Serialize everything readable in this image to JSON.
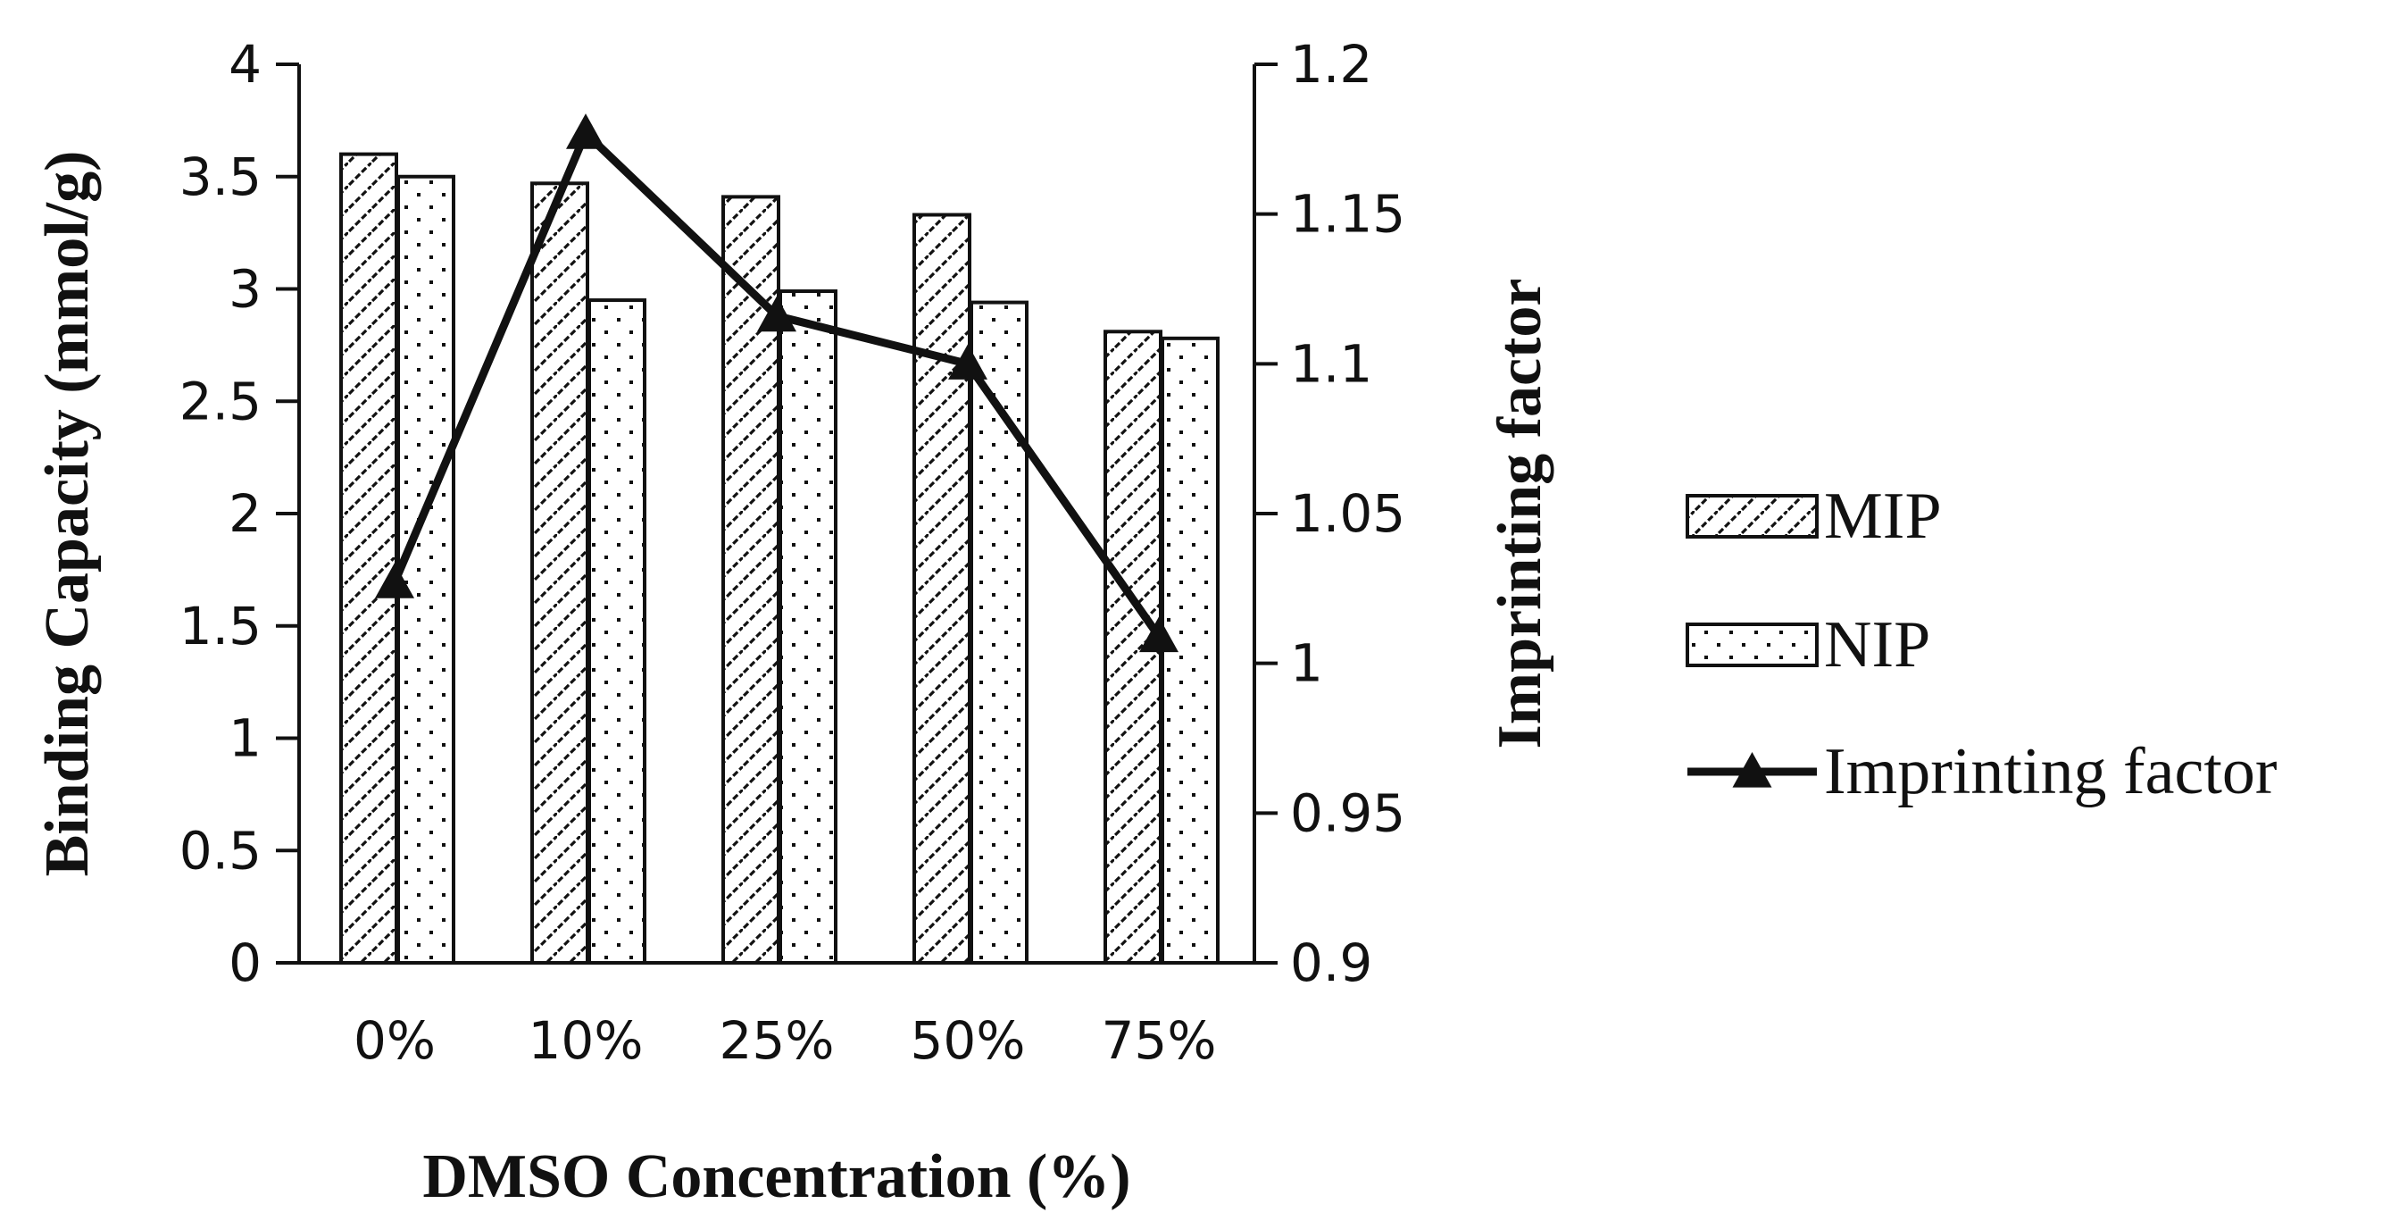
{
  "chart_data": {
    "type": "bar",
    "categories": [
      "0%",
      "10%",
      "25%",
      "50%",
      "75%"
    ],
    "xlabel": "DMSO Concentration (%)",
    "ylabel": "Binding Capacity (mmol/g)",
    "y2label": "Imprinting factor",
    "ylim": [
      0,
      4
    ],
    "yticks": [
      "0",
      "0.5",
      "1",
      "1.5",
      "2",
      "2.5",
      "3",
      "3.5",
      "4"
    ],
    "y2lim": [
      0.9,
      1.2
    ],
    "y2ticks": [
      "0.9",
      "0.95",
      "1",
      "1.05",
      "1.1",
      "1.15",
      "1.2"
    ],
    "grid": false,
    "legend_position": "right",
    "series": [
      {
        "name": "MIP",
        "kind": "bar",
        "pattern": "diagonal-hatch",
        "values": [
          3.6,
          3.47,
          3.41,
          3.33,
          2.81
        ]
      },
      {
        "name": "NIP",
        "kind": "bar",
        "pattern": "dotted",
        "values": [
          3.5,
          2.95,
          2.99,
          2.94,
          2.78
        ]
      },
      {
        "name": "Imprinting factor",
        "kind": "line",
        "marker": "triangle",
        "axis": "right",
        "values": [
          1.027,
          1.177,
          1.116,
          1.1,
          1.009
        ]
      }
    ],
    "colors": {
      "axis": "#111111",
      "bar_fill": "#ffffff",
      "line": "#111111"
    }
  }
}
